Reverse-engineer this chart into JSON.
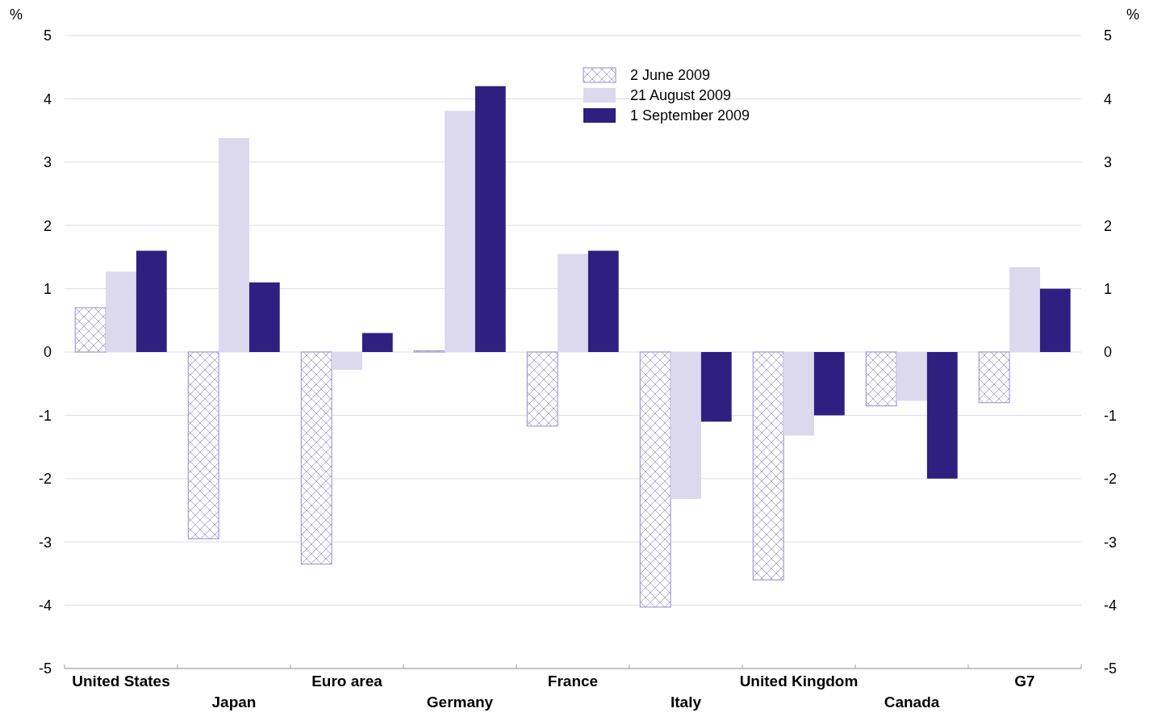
{
  "chart_data": {
    "type": "bar",
    "ylabel": "%",
    "y2label": "%",
    "categories": [
      "United States",
      "Japan",
      "Euro area",
      "Germany",
      "France",
      "Italy",
      "United Kingdom",
      "Canada",
      "G7"
    ],
    "series": [
      {
        "name": "2 June 2009",
        "color": "#a69bd2",
        "values": [
          0.7,
          -2.95,
          -3.35,
          0.02,
          -1.17,
          -4.03,
          -3.6,
          -0.85,
          -0.8
        ]
      },
      {
        "name": "21 August 2009",
        "color": "#dcd8ed",
        "values": [
          1.27,
          3.38,
          -0.28,
          3.81,
          1.55,
          -2.32,
          -1.32,
          -0.77,
          1.34
        ]
      },
      {
        "name": "1 September 2009",
        "color": "#2e1f80",
        "values": [
          1.6,
          1.1,
          0.3,
          4.2,
          1.6,
          -1.1,
          -1.0,
          -2.0,
          1.0
        ]
      }
    ],
    "ylim": [
      -5,
      5
    ],
    "yticks": [
      -5,
      -4,
      -3,
      -2,
      -1,
      0,
      1,
      2,
      3,
      4,
      5
    ],
    "y2lim": [
      -5,
      5
    ],
    "y2ticks": [
      -5,
      -4,
      -3,
      -2,
      -1,
      0,
      1,
      2,
      3,
      4,
      5
    ],
    "grid": "y",
    "legend": "top"
  }
}
